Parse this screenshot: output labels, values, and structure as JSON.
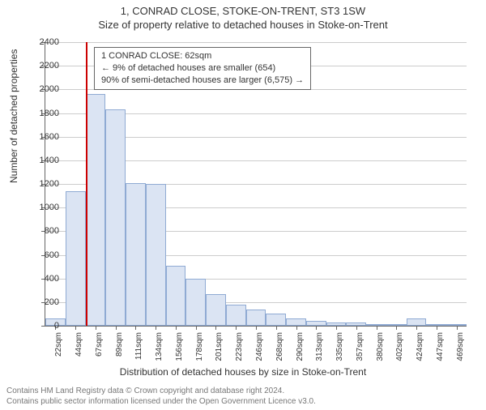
{
  "titles": {
    "main": "1, CONRAD CLOSE, STOKE-ON-TRENT, ST3 1SW",
    "sub": "Size of property relative to detached houses in Stoke-on-Trent"
  },
  "axes": {
    "ylabel": "Number of detached properties",
    "xlabel": "Distribution of detached houses by size in Stoke-on-Trent",
    "ylim": [
      0,
      2400
    ],
    "ytick_step": 200,
    "background_color": "#ffffff",
    "grid_color": "#cccccc",
    "axis_color": "#666666",
    "label_fontsize": 12,
    "tick_fontsize": 11
  },
  "chart": {
    "type": "histogram",
    "x_labels": [
      "22sqm",
      "44sqm",
      "67sqm",
      "89sqm",
      "111sqm",
      "134sqm",
      "156sqm",
      "178sqm",
      "201sqm",
      "223sqm",
      "246sqm",
      "268sqm",
      "290sqm",
      "313sqm",
      "335sqm",
      "357sqm",
      "380sqm",
      "402sqm",
      "424sqm",
      "447sqm",
      "469sqm"
    ],
    "values": [
      60,
      1140,
      1960,
      1830,
      1210,
      1200,
      510,
      400,
      265,
      175,
      135,
      100,
      60,
      40,
      30,
      25,
      15,
      10,
      60,
      5,
      5
    ],
    "bar_fill": "#dbe4f3",
    "bar_border": "#8faad3",
    "bar_gap_ratio": 0.0
  },
  "marker": {
    "bin_index": 2,
    "position_in_bin": 0.0,
    "color": "#cc0000"
  },
  "annotation": {
    "lines": [
      "1 CONRAD CLOSE: 62sqm",
      "← 9% of detached houses are smaller (654)",
      "90% of semi-detached houses are larger (6,575) →"
    ],
    "border_color": "#666666",
    "background": "#ffffff",
    "fontsize": 11
  },
  "footer": {
    "line1": "Contains HM Land Registry data © Crown copyright and database right 2024.",
    "line2": "Contains public sector information licensed under the Open Government Licence v3.0."
  }
}
